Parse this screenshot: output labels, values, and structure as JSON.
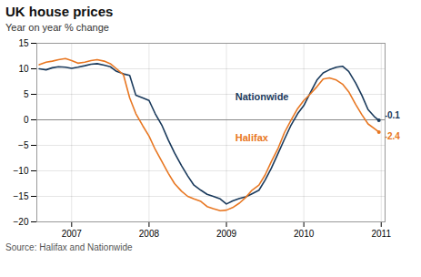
{
  "chart_data": {
    "type": "line",
    "title": "UK house prices",
    "subtitle": "Year on year % change",
    "source": "Source: Halifax and Nationwide",
    "x": [
      2006.58,
      2006.67,
      2006.75,
      2006.83,
      2006.92,
      2007.0,
      2007.08,
      2007.17,
      2007.25,
      2007.33,
      2007.42,
      2007.5,
      2007.58,
      2007.67,
      2007.75,
      2007.83,
      2007.92,
      2008.0,
      2008.08,
      2008.17,
      2008.25,
      2008.33,
      2008.42,
      2008.5,
      2008.58,
      2008.67,
      2008.75,
      2008.83,
      2008.92,
      2009.0,
      2009.08,
      2009.17,
      2009.25,
      2009.33,
      2009.42,
      2009.5,
      2009.58,
      2009.67,
      2009.75,
      2009.83,
      2009.92,
      2010.0,
      2010.08,
      2010.17,
      2010.25,
      2010.33,
      2010.42,
      2010.5,
      2010.58,
      2010.67,
      2010.75,
      2010.83,
      2010.92,
      2010.97
    ],
    "series": [
      {
        "name": "Nationwide",
        "color": "#1a3a5c",
        "values": [
          10.0,
          9.8,
          10.2,
          10.4,
          10.3,
          10.1,
          10.3,
          10.6,
          10.9,
          11.0,
          10.7,
          10.4,
          9.5,
          9.0,
          8.7,
          4.8,
          4.3,
          3.8,
          1.2,
          -1.2,
          -4.0,
          -6.5,
          -9.0,
          -11.0,
          -12.8,
          -13.8,
          -14.6,
          -15.0,
          -15.5,
          -16.5,
          -15.9,
          -15.4,
          -15.1,
          -14.5,
          -13.8,
          -11.8,
          -9.5,
          -6.5,
          -3.8,
          -1.2,
          1.2,
          2.8,
          5.2,
          7.8,
          9.2,
          9.8,
          10.3,
          10.5,
          9.5,
          7.2,
          4.8,
          2.0,
          0.5,
          -0.1
        ]
      },
      {
        "name": "Halifax",
        "color": "#e87722",
        "values": [
          10.8,
          11.3,
          11.5,
          11.8,
          12.0,
          11.6,
          11.1,
          11.3,
          11.6,
          11.8,
          11.5,
          11.0,
          10.0,
          8.8,
          4.3,
          1.2,
          -1.2,
          -3.2,
          -5.8,
          -8.3,
          -10.5,
          -12.5,
          -14.0,
          -15.0,
          -15.5,
          -16.0,
          -17.0,
          -17.4,
          -17.8,
          -17.7,
          -17.2,
          -16.3,
          -15.2,
          -13.8,
          -12.8,
          -10.8,
          -8.2,
          -5.5,
          -2.5,
          -0.2,
          2.2,
          3.8,
          5.0,
          6.5,
          8.0,
          8.2,
          7.8,
          7.0,
          5.5,
          3.0,
          1.0,
          -0.8,
          -1.8,
          -2.4
        ]
      }
    ],
    "annotations": [
      {
        "text": "-0.1",
        "series": "Nationwide",
        "x": 2010.97,
        "y": -0.1
      },
      {
        "text": "-2.4",
        "series": "Halifax",
        "x": 2010.97,
        "y": -2.4
      }
    ],
    "xlim": [
      2006.55,
      2011.05
    ],
    "xticks": [
      2007,
      2008,
      2009,
      2010,
      2011
    ],
    "ylim": [
      -20,
      15
    ],
    "yticks": [
      -20,
      -15,
      -10,
      -5,
      0,
      5,
      10,
      15
    ],
    "grid": true
  }
}
